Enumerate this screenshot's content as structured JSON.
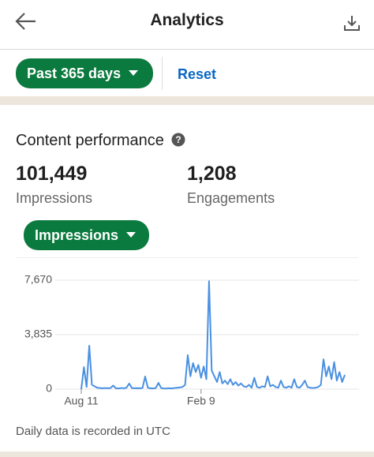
{
  "header": {
    "title": "Analytics"
  },
  "filters": {
    "range": "Past 365 days",
    "reset": "Reset"
  },
  "section": {
    "title": "Content performance",
    "metrics": [
      {
        "value": "101,449",
        "label": "Impressions"
      },
      {
        "value": "1,208",
        "label": "Engagements"
      }
    ],
    "metric_selector": "Impressions",
    "footnote": "Daily data is recorded in UTC"
  },
  "chart_data": {
    "type": "line",
    "color": "#4a90e2",
    "grid": true,
    "ylim": [
      0,
      7670
    ],
    "yticks": [
      0,
      {
        "value": 3835,
        "label": "3,835"
      },
      {
        "value": 7670,
        "label": "7,670"
      }
    ],
    "categories": [
      "Aug 11",
      null,
      null,
      null,
      null,
      null,
      null,
      null,
      null,
      null,
      null,
      null,
      null,
      null,
      null,
      null,
      null,
      null,
      null,
      null,
      null,
      null,
      null,
      null,
      null,
      null,
      null,
      null,
      null,
      null,
      null,
      null,
      null,
      null,
      null,
      null,
      null,
      null,
      null,
      null,
      null,
      null,
      null,
      null,
      null,
      "Feb 9",
      null,
      null,
      null,
      null,
      null,
      null,
      null,
      null,
      null,
      null,
      null,
      null,
      null,
      null,
      null,
      null,
      null,
      null,
      null,
      null,
      null,
      null,
      null,
      null,
      null,
      null,
      null,
      null,
      null,
      null,
      null,
      null,
      null,
      null,
      null,
      null,
      null,
      null,
      null,
      null,
      null,
      null,
      null,
      null,
      null,
      null,
      null,
      null,
      null,
      null,
      null,
      null,
      null,
      null
    ],
    "values": [
      0,
      1550,
      150,
      3060,
      300,
      200,
      100,
      80,
      60,
      80,
      60,
      80,
      250,
      60,
      50,
      80,
      60,
      100,
      390,
      80,
      60,
      70,
      60,
      80,
      890,
      100,
      60,
      50,
      80,
      440,
      80,
      50,
      40,
      60,
      50,
      80,
      100,
      120,
      150,
      300,
      2390,
      900,
      1830,
      1200,
      1700,
      800,
      1600,
      700,
      7600,
      1300,
      900,
      500,
      1200,
      400,
      600,
      350,
      700,
      300,
      500,
      250,
      400,
      200,
      150,
      300,
      100,
      800,
      150,
      100,
      200,
      150,
      900,
      200,
      300,
      150,
      100,
      600,
      150,
      100,
      200,
      100,
      700,
      150,
      100,
      300,
      600,
      150,
      100,
      80,
      100,
      150,
      300,
      2100,
      900,
      1600,
      700,
      1900,
      600,
      1200,
      500,
      1000
    ]
  }
}
